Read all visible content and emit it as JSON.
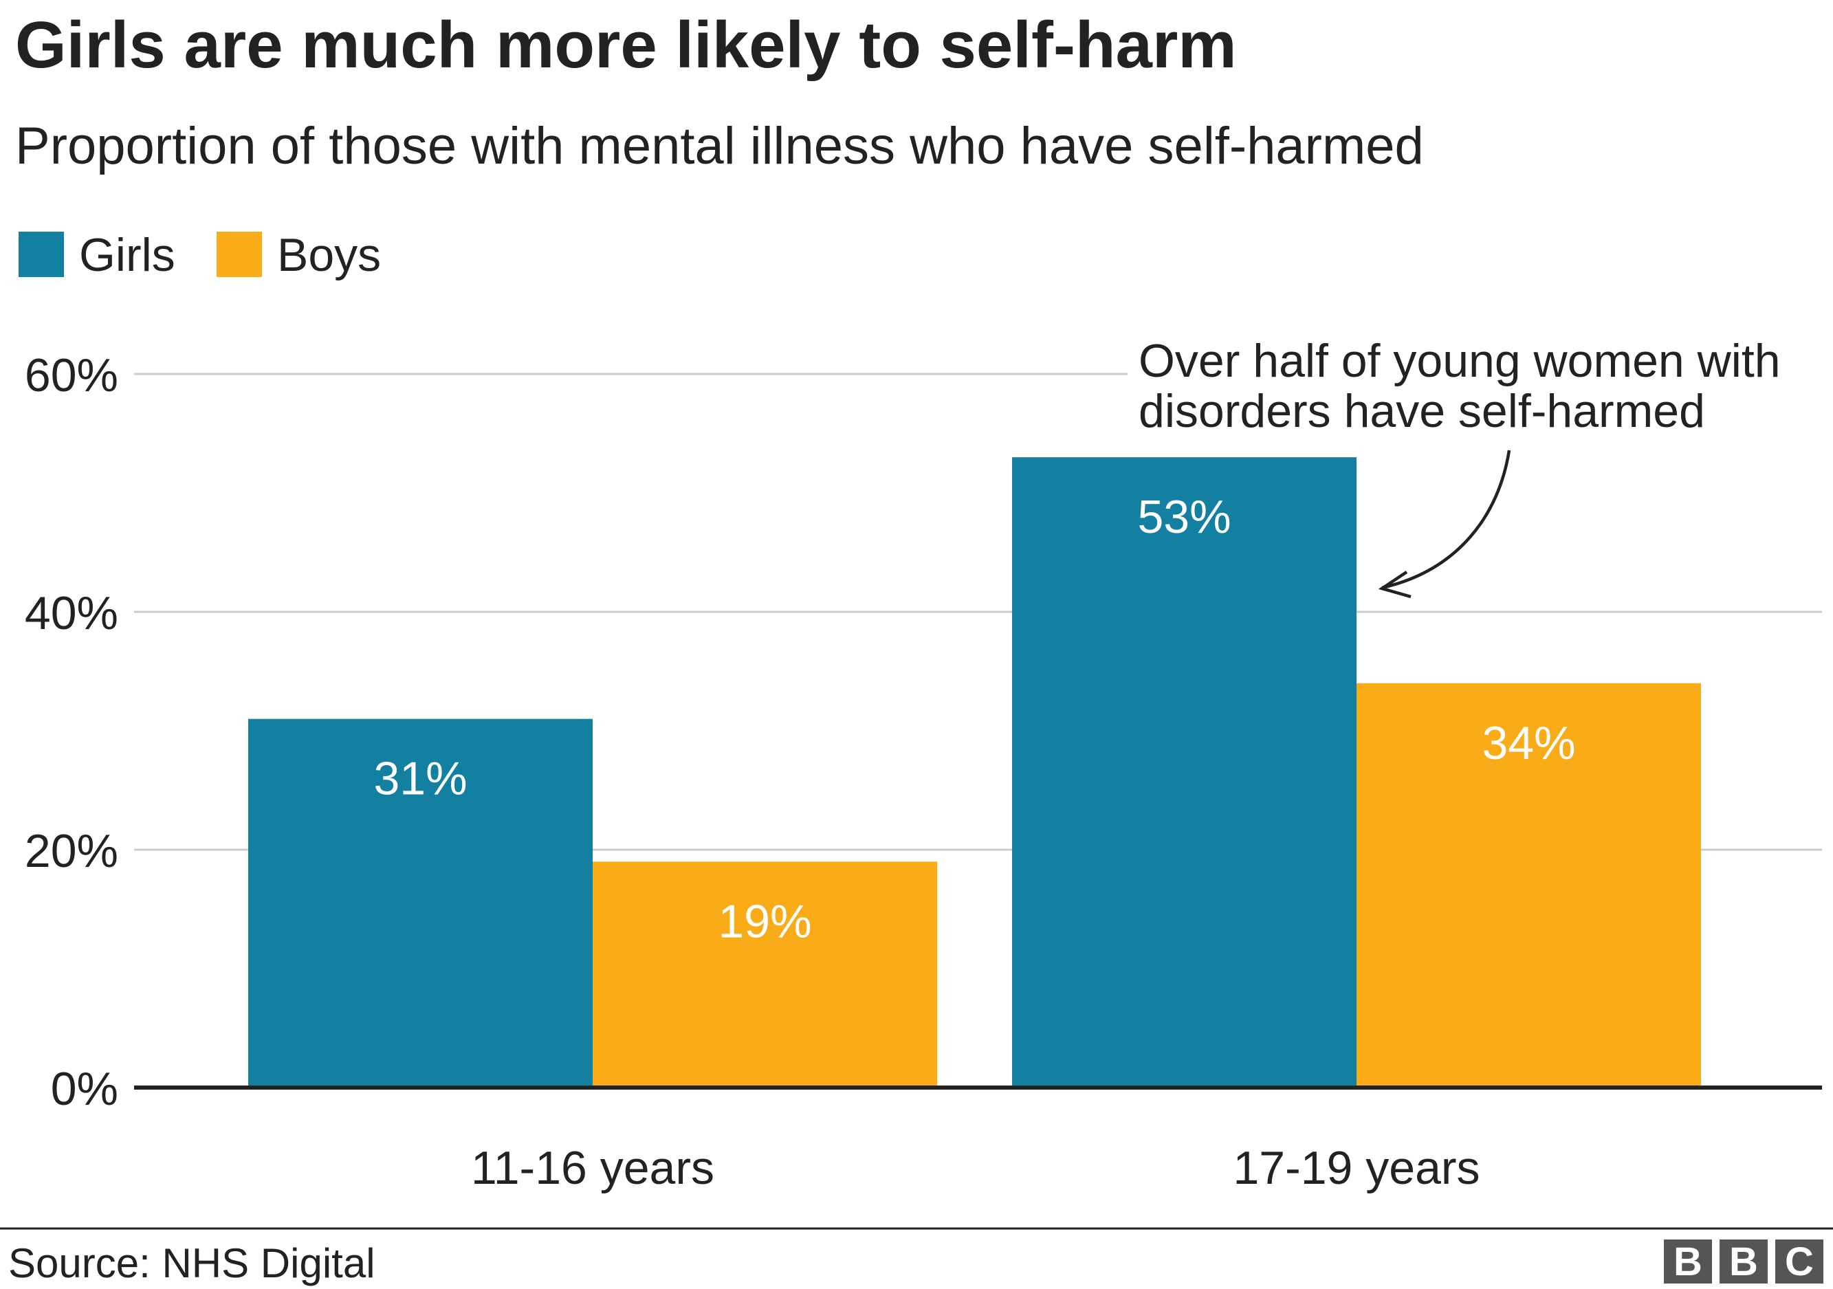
{
  "chart_data": {
    "type": "bar",
    "title": "Girls are much more likely to self-harm",
    "subtitle": "Proportion of those with mental illness who have self-harmed",
    "categories": [
      "11-16 years",
      "17-19 years"
    ],
    "series": [
      {
        "name": "Girls",
        "values": [
          31,
          53
        ],
        "labels": [
          "31%",
          "53%"
        ],
        "color": "#1380A1"
      },
      {
        "name": "Boys",
        "values": [
          19,
          34
        ],
        "labels": [
          "19%",
          "34%"
        ],
        "color": "#FAAB18"
      }
    ],
    "ylim": [
      0,
      60
    ],
    "yticks": [
      {
        "value": 0,
        "label": "0%"
      },
      {
        "value": 20,
        "label": "20%"
      },
      {
        "value": 40,
        "label": "40%"
      },
      {
        "value": 60,
        "label": "60%"
      }
    ],
    "grid": true,
    "legend_position": "top-left",
    "annotation": {
      "lines": [
        "Over half of young women with",
        "disorders have self-harmed"
      ]
    },
    "source": "Source: NHS Digital",
    "logo": "BBC"
  },
  "colors": {
    "text": "#222222",
    "grid": "#cccccc",
    "axis": "#222222",
    "bar_label": "#ffffff",
    "logo_block": "#555555"
  }
}
